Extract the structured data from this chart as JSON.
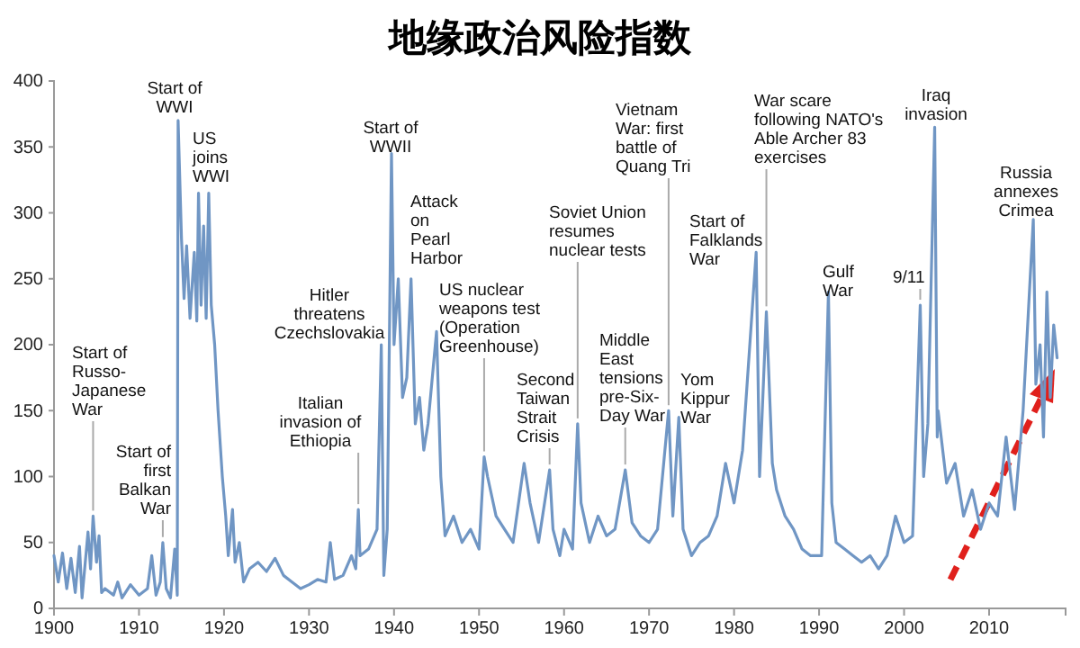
{
  "chart_data": {
    "type": "line",
    "title": "地缘政治风险指数",
    "x": [
      1900,
      1900.5,
      1901,
      1901.5,
      1902,
      1902.5,
      1903,
      1903.3,
      1904,
      1904.3,
      1904.6,
      1905,
      1905.3,
      1905.6,
      1906,
      1907,
      1907.5,
      1908,
      1909,
      1910,
      1911,
      1911.5,
      1912,
      1912.5,
      1912.8,
      1913.2,
      1913.7,
      1914.2,
      1914.5,
      1914.6,
      1915,
      1915.3,
      1915.6,
      1916,
      1916.5,
      1916.8,
      1917,
      1917.3,
      1917.6,
      1917.9,
      1918.2,
      1918.5,
      1918.9,
      1919.3,
      1919.8,
      1920.2,
      1920.5,
      1921,
      1921.3,
      1921.8,
      1922.3,
      1923,
      1924,
      1925,
      1926,
      1927,
      1928,
      1929,
      1930,
      1931,
      1932,
      1932.5,
      1933,
      1934,
      1935,
      1935.5,
      1935.8,
      1936,
      1937,
      1938,
      1938.5,
      1938.8,
      1939.2,
      1939.7,
      1940,
      1940.5,
      1941,
      1941.5,
      1942,
      1942.5,
      1943,
      1943.5,
      1944,
      1945,
      1945.5,
      1946,
      1947,
      1948,
      1949,
      1950,
      1950.6,
      1951,
      1952,
      1953,
      1954,
      1955.3,
      1956,
      1957,
      1958.3,
      1958.7,
      1959.5,
      1960,
      1961,
      1961.6,
      1962,
      1963,
      1964,
      1965,
      1966,
      1967.2,
      1968,
      1969,
      1970,
      1971,
      1972.3,
      1972.8,
      1973.5,
      1974,
      1975,
      1976,
      1977,
      1978,
      1979,
      1980,
      1981,
      1982.6,
      1983,
      1983.8,
      1984.5,
      1985,
      1986,
      1987,
      1988,
      1989,
      1990.3,
      1991.1,
      1991.5,
      1992,
      1993,
      1994,
      1995,
      1996,
      1997,
      1998,
      1999,
      2000,
      2001,
      2001.9,
      2002.3,
      2002.8,
      2003.6,
      2003.9,
      2004,
      2005,
      2006,
      2007,
      2008,
      2009,
      2010,
      2011,
      2012,
      2013,
      2014,
      2015.2,
      2015.5,
      2016,
      2016.4,
      2016.8,
      2017.2,
      2017.6,
      2018
    ],
    "series": [
      {
        "color": "#7096c4",
        "values": [
          40,
          20,
          42,
          15,
          38,
          12,
          47,
          8,
          58,
          30,
          70,
          35,
          55,
          12,
          15,
          10,
          20,
          8,
          18,
          10,
          15,
          40,
          10,
          20,
          50,
          15,
          8,
          45,
          10,
          370,
          280,
          235,
          275,
          220,
          270,
          218,
          315,
          230,
          290,
          220,
          315,
          230,
          200,
          150,
          100,
          70,
          40,
          75,
          35,
          50,
          20,
          30,
          35,
          28,
          38,
          25,
          20,
          15,
          18,
          22,
          20,
          50,
          22,
          25,
          40,
          30,
          75,
          40,
          45,
          60,
          200,
          25,
          60,
          345,
          200,
          250,
          160,
          175,
          250,
          140,
          160,
          120,
          140,
          210,
          100,
          55,
          70,
          50,
          60,
          45,
          115,
          100,
          70,
          60,
          50,
          110,
          80,
          50,
          105,
          60,
          40,
          60,
          45,
          140,
          80,
          50,
          70,
          55,
          60,
          105,
          65,
          55,
          50,
          60,
          150,
          70,
          145,
          60,
          40,
          50,
          55,
          70,
          110,
          80,
          120,
          270,
          100,
          225,
          110,
          90,
          70,
          60,
          45,
          40,
          40,
          240,
          80,
          50,
          45,
          40,
          35,
          40,
          30,
          40,
          70,
          50,
          55,
          230,
          100,
          140,
          365,
          130,
          150,
          95,
          110,
          70,
          90,
          60,
          80,
          70,
          130,
          75,
          150,
          295,
          170,
          200,
          130,
          240,
          160,
          215,
          190
        ]
      }
    ],
    "xlim": [
      1900,
      2019
    ],
    "xticks": [
      1900,
      1910,
      1920,
      1930,
      1940,
      1950,
      1960,
      1970,
      1980,
      1990,
      2000,
      2010
    ],
    "ylim": [
      0,
      400
    ],
    "yticks": [
      0,
      50,
      100,
      150,
      200,
      250,
      300,
      350,
      400
    ],
    "grid": false,
    "marker": "none",
    "line_style": "solid",
    "annotations": [
      {
        "text": "Start of\nRusso-\nJapanese\nWar",
        "x": 1904.6,
        "y": 70
      },
      {
        "text": "Start of\nfirst\nBalkan\nWar",
        "x": 1912.8,
        "y": 50
      },
      {
        "text": "Start of\nWWI",
        "x": 1914.6,
        "y": 370
      },
      {
        "text": "US\njoins\nWWI",
        "x": 1917,
        "y": 315
      },
      {
        "text": "Italian\ninvasion of\nEthiopia",
        "x": 1935.8,
        "y": 75
      },
      {
        "text": "Hitler\nthreatens\nCzechslovakia",
        "x": 1938.5,
        "y": 200
      },
      {
        "text": "Start of\nWWII",
        "x": 1939.7,
        "y": 345
      },
      {
        "text": "Attack\non\nPearl\nHarbor",
        "x": 1942,
        "y": 250
      },
      {
        "text": "US nuclear\nweapons test\n(Operation\nGreenhouse)",
        "x": 1950.6,
        "y": 115
      },
      {
        "text": "Second\nTaiwan\nStrait\nCrisis",
        "x": 1958.3,
        "y": 105
      },
      {
        "text": "Soviet Union\nresumes\nnuclear tests",
        "x": 1961.6,
        "y": 140
      },
      {
        "text": "Middle\nEast\ntensions\npre-Six-\nDay War",
        "x": 1967.2,
        "y": 105
      },
      {
        "text": "Vietnam\nWar: first\nbattle of\nQuang Tri",
        "x": 1972.3,
        "y": 150
      },
      {
        "text": "Yom\nKippur\nWar",
        "x": 1973.5,
        "y": 145
      },
      {
        "text": "Start of\nFalklands\nWar",
        "x": 1982.6,
        "y": 270
      },
      {
        "text": "War scare\nfollowing NATO's\nAble Archer 83\nexercises",
        "x": 1983.8,
        "y": 225
      },
      {
        "text": "Gulf\nWar",
        "x": 1991.1,
        "y": 240
      },
      {
        "text": "9/11",
        "x": 2001.9,
        "y": 230
      },
      {
        "text": "Iraq\ninvasion",
        "x": 2003.6,
        "y": 365
      },
      {
        "text": "Russia\nannexes\nCrimea",
        "x": 2015.2,
        "y": 295
      }
    ]
  }
}
